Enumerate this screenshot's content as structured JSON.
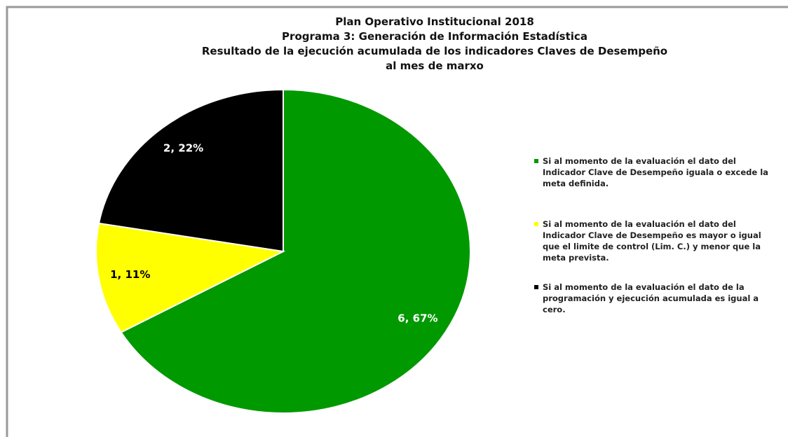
{
  "chart_data": {
    "type": "pie",
    "title": [
      "Plan Operativo Institucional 2018",
      "Programa 3: Generación de Información Estadística",
      "Resultado de la ejecución  acumulada de los indicadores Claves de Desempeño",
      "al mes de marxo"
    ],
    "categories": [
      "Si al momento de la evaluación el dato del Indicador Clave de Desempeño iguala o excede la meta definida.",
      "Si al momento de la evaluación el dato del Indicador Clave de Desempeño es mayor o igual que el limite de control (Lim. C.) y menor que la meta prevista.",
      "Si al momento de la evaluación el dato de la programación y ejecución acumulada es igual a cero."
    ],
    "values": [
      6,
      1,
      2
    ],
    "value_labels": [
      "6, 67%",
      "1, 11%",
      "2, 22%"
    ],
    "colors": [
      "#009900",
      "#ffff00",
      "#000000"
    ]
  }
}
